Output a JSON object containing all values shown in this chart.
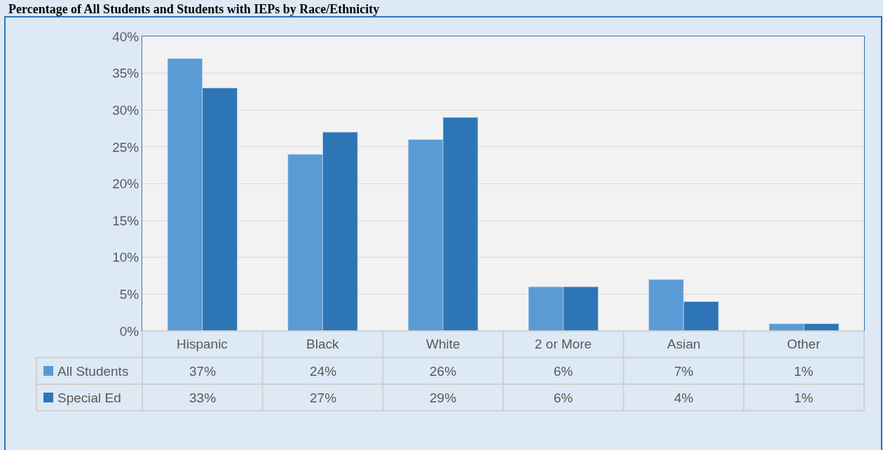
{
  "chart_data": {
    "type": "bar",
    "title": "Percentage of All Students and Students with IEPs by Race/Ethnicity",
    "categories": [
      "Hispanic",
      "Black",
      "White",
      "2 or More",
      "Asian",
      "Other"
    ],
    "series": [
      {
        "name": "All Students",
        "color": "#5b9bd5",
        "values": [
          37,
          24,
          26,
          6,
          7,
          1
        ],
        "value_labels": [
          "37%",
          "24%",
          "26%",
          "6%",
          "7%",
          "1%"
        ]
      },
      {
        "name": "Special Ed",
        "color": "#2e75b6",
        "values": [
          33,
          27,
          29,
          6,
          4,
          1
        ],
        "value_labels": [
          "33%",
          "27%",
          "29%",
          "6%",
          "4%",
          "1%"
        ]
      }
    ],
    "ylim": [
      0,
      40
    ],
    "yticks": [
      {
        "value": 0,
        "label": "0%"
      },
      {
        "value": 5,
        "label": "5%"
      },
      {
        "value": 10,
        "label": "10%"
      },
      {
        "value": 15,
        "label": "15%"
      },
      {
        "value": 20,
        "label": "20%"
      },
      {
        "value": 25,
        "label": "25%"
      },
      {
        "value": 30,
        "label": "30%"
      },
      {
        "value": 35,
        "label": "35%"
      },
      {
        "value": 40,
        "label": "40%"
      }
    ],
    "grid": "y",
    "legend": "bottom"
  }
}
